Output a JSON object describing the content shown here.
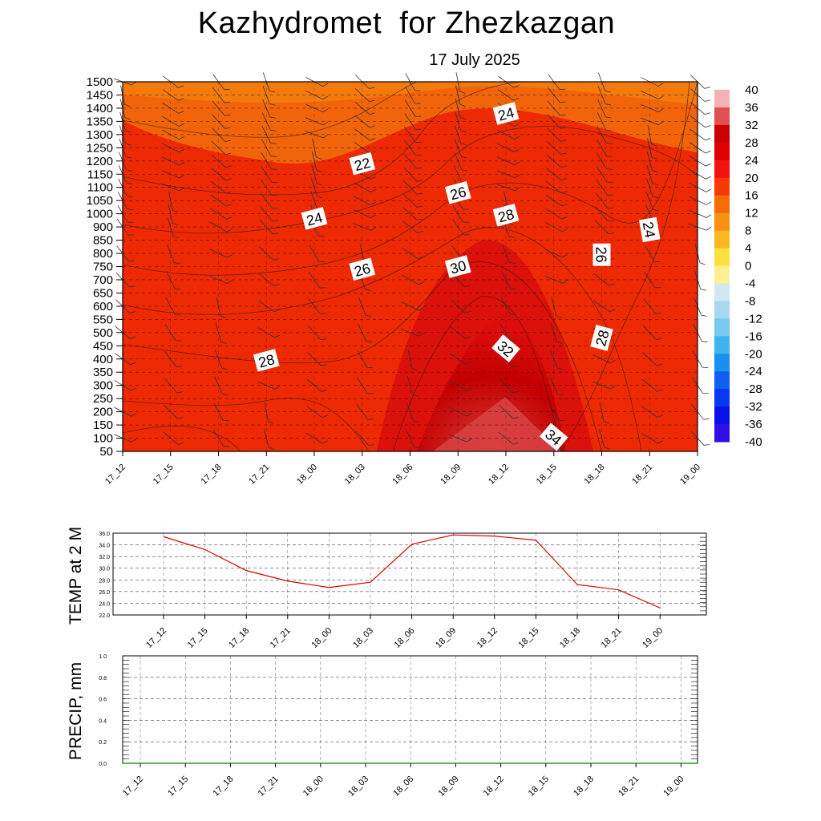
{
  "title": "Kazhydromet  for Zhezkazgan",
  "date": "17 July 2025",
  "time_labels": [
    "17_12",
    "17_15",
    "17_18",
    "17_21",
    "18_00",
    "18_03",
    "18_06",
    "18_09",
    "18_12",
    "18_15",
    "18_18",
    "18_21",
    "19_00"
  ],
  "chart_data": [
    {
      "type": "heatmap",
      "title": "",
      "xlabel": "",
      "ylabel": "",
      "x": [
        "17_12",
        "17_15",
        "17_18",
        "17_21",
        "18_00",
        "18_03",
        "18_06",
        "18_09",
        "18_12",
        "18_15",
        "18_18",
        "18_21",
        "19_00"
      ],
      "y_levels": [
        50,
        100,
        150,
        200,
        250,
        300,
        350,
        400,
        450,
        500,
        550,
        600,
        650,
        700,
        750,
        800,
        850,
        900,
        1000,
        1050,
        1100,
        1150,
        1200,
        1250,
        1300,
        1350,
        1400,
        1450,
        1500
      ],
      "ylim": [
        50,
        1500
      ],
      "colorbar_ticks": [
        40,
        36,
        32,
        28,
        24,
        20,
        16,
        12,
        8,
        4,
        0,
        -4,
        -8,
        -12,
        -16,
        -20,
        -24,
        -28,
        -32,
        -36,
        -40
      ],
      "contour_labels": [
        {
          "text": "24",
          "time": "18_12",
          "level": 1380
        },
        {
          "text": "22",
          "time": "18_03",
          "level": 1190
        },
        {
          "text": "26",
          "time": "18_09",
          "level": 1080
        },
        {
          "text": "24",
          "time": "18_00",
          "level": 965
        },
        {
          "text": "28",
          "time": "18_12",
          "level": 990
        },
        {
          "text": "24",
          "time": "18_21",
          "level": 890
        },
        {
          "text": "26",
          "time": "18_18",
          "level": 795
        },
        {
          "text": "26",
          "time": "18_03",
          "level": 740
        },
        {
          "text": "30",
          "time": "18_09",
          "level": 750
        },
        {
          "text": "28",
          "time": "17_21",
          "level": 395
        },
        {
          "text": "32",
          "time": "18_12",
          "level": 440
        },
        {
          "text": "28",
          "time": "18_18",
          "level": 480
        },
        {
          "text": "34",
          "time": "18_15",
          "level": 105
        }
      ],
      "grid": true
    },
    {
      "type": "line",
      "ylabel": "TEMP at 2 M",
      "x": [
        "17_12",
        "17_15",
        "17_18",
        "17_21",
        "18_00",
        "18_03",
        "18_06",
        "18_09",
        "18_12",
        "18_15",
        "18_18",
        "18_21",
        "19_00"
      ],
      "series": [
        {
          "values": [
            35.4,
            33.2,
            29.6,
            27.8,
            26.7,
            27.6,
            34.1,
            35.7,
            35.5,
            34.8,
            27.2,
            26.3,
            23.2
          ]
        }
      ],
      "ylim": [
        22,
        36
      ],
      "yticks": [
        "36.0",
        "34.0",
        "32.0",
        "30.0",
        "28.0",
        "26.0",
        "24.0",
        "22.0"
      ],
      "color": "#dd0000",
      "grid": true
    },
    {
      "type": "line",
      "ylabel": "PRECIP, mm",
      "x": [
        "17_12",
        "17_15",
        "17_18",
        "17_21",
        "18_00",
        "18_03",
        "18_06",
        "18_09",
        "18_12",
        "18_15",
        "18_18",
        "18_21",
        "19_00"
      ],
      "series": [
        {
          "values": [
            0,
            0,
            0,
            0,
            0,
            0,
            0,
            0,
            0,
            0,
            0,
            0,
            0
          ]
        }
      ],
      "ylim": [
        0,
        1
      ],
      "yticks": [
        "1.0",
        "0.8",
        "0.6",
        "0.4",
        "0.2",
        "0.0"
      ],
      "color": "#008800",
      "grid": true
    }
  ]
}
